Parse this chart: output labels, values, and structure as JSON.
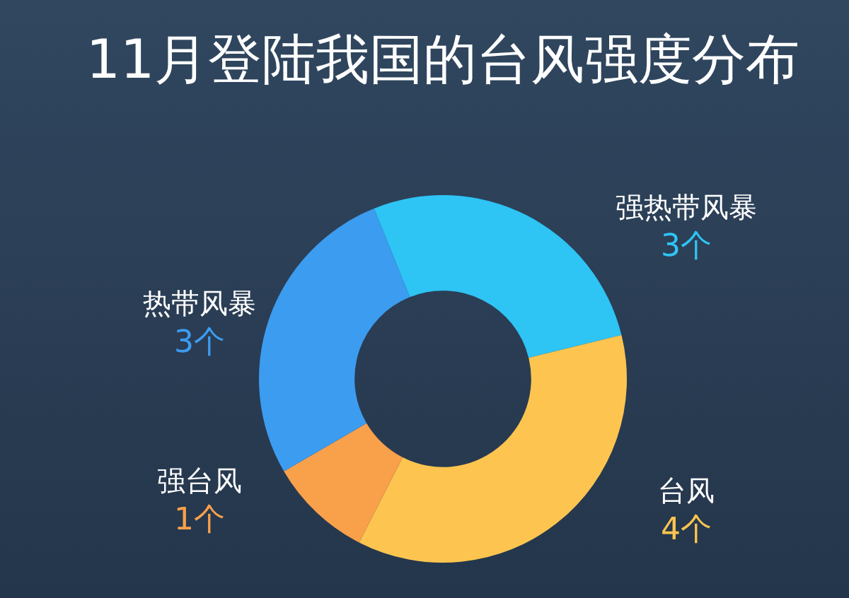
{
  "chart_data": {
    "type": "donut",
    "title": "11月登陆我国的台风强度分布",
    "categories": [
      "强热带风暴",
      "台风",
      "强台风",
      "热带风暴"
    ],
    "values": [
      3,
      4,
      1,
      3
    ],
    "colors": [
      "#2ec4f4",
      "#fdc54f",
      "#f9a04b",
      "#3c9cf0"
    ],
    "value_labels": [
      "3个",
      "4个",
      "1个",
      "3个"
    ],
    "legend": false
  }
}
